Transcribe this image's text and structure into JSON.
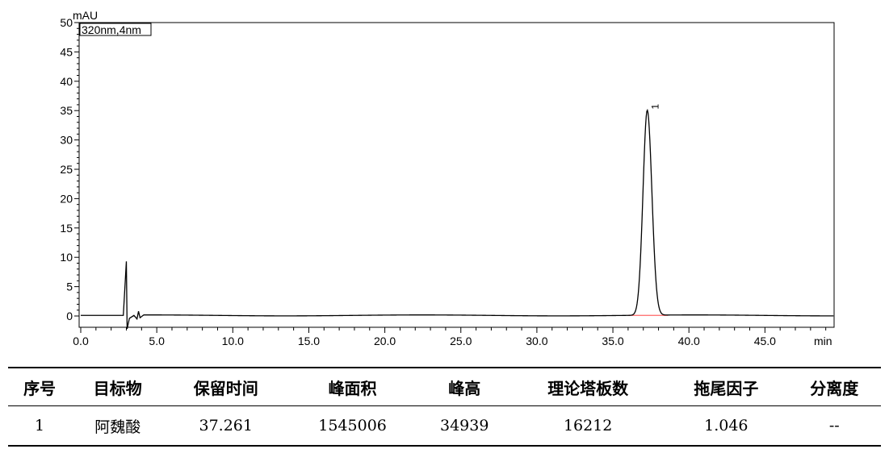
{
  "chart_data": {
    "type": "line",
    "channel_label": "320nm,4nm",
    "y_unit": "mAU",
    "x_unit": "min",
    "xlim": [
      0,
      50
    ],
    "ylim": [
      -2,
      50
    ],
    "x_ticks": [
      0,
      5,
      10,
      15,
      20,
      25,
      30,
      35,
      40,
      45
    ],
    "x_tick_labels": [
      "0.0",
      "5.0",
      "10.0",
      "15.0",
      "20.0",
      "25.0",
      "30.0",
      "35.0",
      "40.0",
      "45.0"
    ],
    "y_ticks": [
      0,
      5,
      10,
      15,
      20,
      25,
      30,
      35,
      40,
      45,
      50
    ],
    "y_tick_labels": [
      "0",
      "5",
      "10",
      "15",
      "20",
      "25",
      "30",
      "35",
      "40",
      "45",
      "50"
    ],
    "baseline": 0.1,
    "solvent_front": [
      {
        "x": 2.8,
        "y": 0.1
      },
      {
        "x": 3.0,
        "y": 9.3
      },
      {
        "x": 3.05,
        "y": -2.2
      },
      {
        "x": 3.2,
        "y": -0.4
      },
      {
        "x": 3.5,
        "y": 0.1
      },
      {
        "x": 3.7,
        "y": -0.5
      },
      {
        "x": 3.8,
        "y": 0.8
      },
      {
        "x": 3.9,
        "y": -0.3
      },
      {
        "x": 4.1,
        "y": 0.1
      }
    ],
    "peaks": [
      {
        "label": "1",
        "retention_time": 37.261,
        "height_mAU": 34.939,
        "sigma_min": 0.28
      }
    ],
    "integration_baseline": {
      "x_start": 36.0,
      "x_end": 38.6,
      "color": "#ff6666"
    },
    "trace_color": "#000000",
    "grid": false
  },
  "table": {
    "headers": [
      "序号",
      "目标物",
      "保留时间",
      "峰面积",
      "峰高",
      "理论塔板数",
      "拖尾因子",
      "分离度"
    ],
    "rows": [
      [
        "1",
        "阿魏酸",
        "37.261",
        "1545006",
        "34939",
        "16212",
        "1.046",
        "--"
      ]
    ]
  }
}
